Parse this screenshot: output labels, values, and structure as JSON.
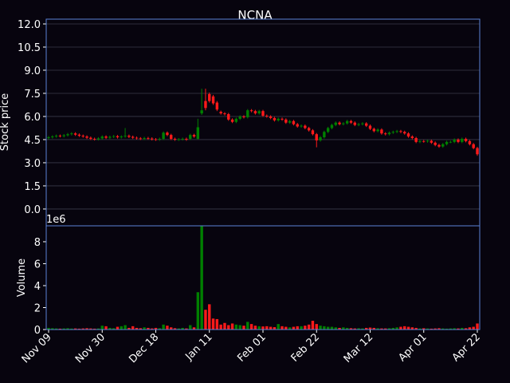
{
  "chart_data": {
    "type": "candlestick",
    "title": "NCNA",
    "ylabel": "Stock price",
    "volume_ylabel": "Volume",
    "volume_offset": "1e6",
    "categories": [
      "Nov 09",
      null,
      null,
      null,
      null,
      null,
      null,
      null,
      null,
      null,
      null,
      null,
      null,
      null,
      "Nov 30",
      null,
      null,
      null,
      null,
      null,
      null,
      null,
      null,
      null,
      null,
      null,
      null,
      null,
      "Dec 18",
      null,
      null,
      null,
      null,
      null,
      null,
      null,
      null,
      null,
      null,
      null,
      null,
      null,
      "Jan 11",
      null,
      null,
      null,
      null,
      null,
      null,
      null,
      null,
      null,
      null,
      null,
      null,
      null,
      "Feb 01",
      null,
      null,
      null,
      null,
      null,
      null,
      null,
      null,
      null,
      null,
      null,
      null,
      null,
      "Feb 22",
      null,
      null,
      null,
      null,
      null,
      null,
      null,
      null,
      null,
      null,
      null,
      null,
      null,
      "Mar 12",
      null,
      null,
      null,
      null,
      null,
      null,
      null,
      null,
      null,
      null,
      null,
      null,
      null,
      "Apr 01",
      null,
      null,
      null,
      null,
      null,
      null,
      null,
      null,
      null,
      null,
      null,
      null,
      null,
      "Apr 22"
    ],
    "open": [
      4.6,
      4.65,
      4.7,
      4.75,
      4.72,
      4.78,
      4.85,
      4.9,
      4.82,
      4.75,
      4.7,
      4.62,
      4.55,
      4.52,
      4.58,
      4.7,
      4.62,
      4.68,
      4.72,
      4.65,
      4.7,
      4.75,
      4.68,
      4.62,
      4.58,
      4.55,
      4.6,
      4.57,
      4.52,
      4.5,
      4.55,
      4.95,
      4.8,
      4.55,
      4.5,
      4.52,
      4.55,
      4.55,
      4.8,
      4.55,
      6.2,
      7.0,
      7.45,
      7.3,
      6.9,
      6.3,
      6.2,
      6.15,
      5.8,
      5.65,
      5.85,
      6.0,
      5.95,
      6.4,
      6.35,
      6.2,
      6.35,
      6.05,
      6.0,
      5.9,
      5.75,
      5.85,
      5.8,
      5.6,
      5.7,
      5.5,
      5.35,
      5.4,
      5.25,
      5.1,
      4.85,
      4.45,
      4.65,
      5.0,
      5.25,
      5.45,
      5.6,
      5.5,
      5.55,
      5.7,
      5.6,
      5.45,
      5.5,
      5.55,
      5.4,
      5.2,
      5.05,
      5.15,
      4.9,
      4.85,
      4.95,
      5.0,
      5.05,
      5.0,
      4.9,
      4.7,
      4.6,
      4.35,
      4.4,
      4.38,
      4.42,
      4.3,
      4.15,
      4.05,
      4.2,
      4.35,
      4.35,
      4.5,
      4.35,
      4.55,
      4.4,
      4.2,
      3.95
    ],
    "high": [
      4.73,
      4.78,
      4.83,
      4.83,
      4.86,
      4.93,
      4.98,
      4.98,
      4.9,
      4.83,
      4.78,
      4.7,
      4.63,
      4.66,
      4.78,
      4.78,
      4.76,
      4.8,
      4.8,
      4.78,
      5.25,
      4.83,
      4.76,
      4.7,
      4.66,
      4.68,
      4.68,
      4.65,
      4.6,
      4.63,
      5.03,
      5.03,
      4.88,
      4.63,
      4.6,
      4.63,
      4.63,
      4.88,
      4.88,
      5.85,
      7.8,
      7.8,
      7.55,
      7.4,
      7.0,
      6.38,
      6.28,
      6.23,
      5.88,
      5.93,
      6.08,
      6.08,
      6.48,
      6.48,
      6.43,
      6.43,
      6.43,
      6.13,
      6.08,
      5.98,
      5.93,
      5.93,
      5.88,
      5.78,
      5.78,
      5.58,
      5.48,
      5.48,
      5.33,
      5.18,
      4.93,
      4.73,
      5.08,
      5.33,
      5.53,
      5.68,
      5.68,
      5.63,
      5.78,
      5.78,
      5.68,
      5.58,
      5.63,
      5.63,
      5.48,
      5.28,
      5.23,
      5.23,
      4.98,
      5.03,
      5.08,
      5.13,
      5.13,
      5.08,
      4.98,
      4.78,
      4.68,
      4.48,
      4.48,
      4.5,
      4.5,
      4.38,
      4.23,
      4.28,
      4.43,
      4.43,
      4.58,
      4.58,
      4.63,
      4.63,
      4.48,
      4.28,
      4.03
    ],
    "low": [
      4.52,
      4.57,
      4.62,
      4.64,
      4.64,
      4.7,
      4.77,
      4.74,
      4.67,
      4.62,
      4.54,
      4.47,
      4.44,
      4.44,
      4.5,
      4.54,
      4.54,
      4.6,
      4.57,
      4.57,
      4.62,
      4.6,
      4.54,
      4.5,
      4.47,
      4.47,
      4.49,
      4.44,
      4.42,
      4.42,
      4.47,
      4.72,
      4.47,
      4.42,
      4.42,
      4.44,
      4.42,
      4.47,
      4.62,
      4.5,
      6.1,
      6.4,
      6.9,
      6.75,
      6.35,
      6.12,
      6.07,
      5.72,
      5.57,
      5.57,
      5.77,
      5.87,
      5.87,
      6.27,
      6.12,
      6.12,
      5.97,
      5.92,
      5.82,
      5.67,
      5.67,
      5.72,
      5.52,
      5.52,
      5.42,
      5.27,
      5.27,
      5.17,
      5.02,
      4.77,
      4.0,
      4.37,
      4.57,
      4.92,
      5.17,
      5.37,
      5.42,
      5.42,
      5.47,
      5.52,
      5.37,
      5.37,
      5.42,
      5.32,
      5.12,
      4.97,
      4.97,
      4.82,
      4.77,
      4.77,
      4.87,
      4.92,
      4.92,
      4.82,
      4.62,
      4.52,
      4.27,
      4.27,
      4.3,
      4.3,
      4.22,
      4.07,
      3.97,
      3.97,
      4.12,
      4.27,
      4.27,
      4.27,
      4.27,
      4.32,
      4.12,
      3.87,
      3.45
    ],
    "close": [
      4.65,
      4.7,
      4.75,
      4.72,
      4.78,
      4.85,
      4.9,
      4.82,
      4.75,
      4.7,
      4.62,
      4.55,
      4.52,
      4.58,
      4.7,
      4.62,
      4.68,
      4.72,
      4.65,
      4.7,
      4.75,
      4.68,
      4.62,
      4.58,
      4.55,
      4.6,
      4.57,
      4.52,
      4.5,
      4.55,
      4.95,
      4.8,
      4.55,
      4.5,
      4.52,
      4.55,
      4.5,
      4.8,
      4.7,
      5.3,
      6.4,
      6.55,
      7.0,
      6.85,
      6.45,
      6.2,
      6.15,
      5.8,
      5.65,
      5.85,
      6.0,
      5.95,
      6.4,
      6.35,
      6.2,
      6.35,
      6.05,
      6.0,
      5.9,
      5.75,
      5.85,
      5.8,
      5.6,
      5.7,
      5.5,
      5.35,
      5.4,
      5.25,
      5.1,
      4.85,
      4.45,
      4.65,
      5.0,
      5.25,
      5.45,
      5.6,
      5.5,
      5.55,
      5.7,
      5.6,
      5.45,
      5.5,
      5.55,
      5.4,
      5.2,
      5.05,
      5.15,
      4.9,
      4.85,
      4.95,
      5.0,
      5.05,
      5.0,
      4.9,
      4.7,
      4.6,
      4.35,
      4.4,
      4.38,
      4.42,
      4.3,
      4.15,
      4.05,
      4.2,
      4.35,
      4.35,
      4.5,
      4.35,
      4.55,
      4.4,
      4.2,
      3.95,
      3.55
    ],
    "volume": [
      0.15,
      0.12,
      0.1,
      0.08,
      0.1,
      0.12,
      0.09,
      0.1,
      0.08,
      0.1,
      0.12,
      0.1,
      0.08,
      0.1,
      0.35,
      0.3,
      0.15,
      0.12,
      0.25,
      0.3,
      0.4,
      0.15,
      0.3,
      0.15,
      0.12,
      0.2,
      0.15,
      0.1,
      0.15,
      0.12,
      0.45,
      0.35,
      0.2,
      0.12,
      0.1,
      0.15,
      0.1,
      0.4,
      0.2,
      3.4,
      9.45,
      1.8,
      2.3,
      1.0,
      0.95,
      0.45,
      0.6,
      0.4,
      0.55,
      0.45,
      0.4,
      0.35,
      0.7,
      0.5,
      0.35,
      0.3,
      0.28,
      0.3,
      0.25,
      0.22,
      0.5,
      0.3,
      0.25,
      0.2,
      0.25,
      0.3,
      0.3,
      0.35,
      0.45,
      0.8,
      0.5,
      0.35,
      0.3,
      0.25,
      0.25,
      0.2,
      0.15,
      0.2,
      0.15,
      0.12,
      0.1,
      0.12,
      0.1,
      0.15,
      0.18,
      0.15,
      0.12,
      0.1,
      0.1,
      0.12,
      0.15,
      0.2,
      0.25,
      0.3,
      0.25,
      0.2,
      0.15,
      0.1,
      0.12,
      0.1,
      0.08,
      0.1,
      0.12,
      0.1,
      0.08,
      0.1,
      0.12,
      0.1,
      0.15,
      0.12,
      0.2,
      0.25,
      0.55
    ],
    "up_color": "#008000",
    "down_color": "#ff1a1a",
    "ylim": [
      -1.09,
      12.31
    ],
    "yticks": [
      {
        "value": 0,
        "label": "0.0"
      },
      1.5,
      {
        "value": 3,
        "label": "3.0"
      },
      4.5,
      {
        "value": 6,
        "label": "6.0"
      },
      7.5,
      {
        "value": 9,
        "label": "9.0"
      },
      10.5,
      {
        "value": 12,
        "label": "12.0"
      }
    ],
    "volume_ylim": [
      0,
      9.45
    ],
    "volume_yticks": [
      0,
      2,
      4,
      6,
      8
    ],
    "grid": true
  }
}
